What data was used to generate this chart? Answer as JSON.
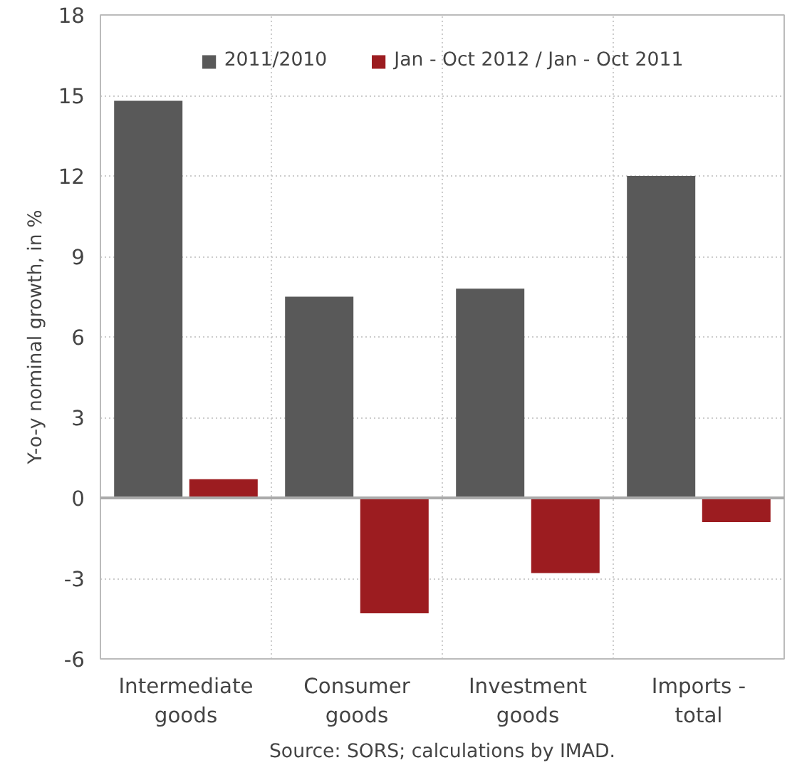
{
  "chart_data": {
    "type": "bar",
    "ylabel": "Y-o-y nominal growth, in %",
    "categories": [
      "Intermediate\ngoods",
      "Consumer\ngoods",
      "Investment\ngoods",
      "Imports -\ntotal"
    ],
    "series": [
      {
        "name": "2011/2010",
        "color": "#595959",
        "values": [
          14.8,
          7.5,
          7.8,
          12.0
        ]
      },
      {
        "name": "Jan - Oct 2012 / Jan - Oct 2011",
        "color": "#9c1c20",
        "values": [
          0.7,
          -4.3,
          -2.8,
          -0.9
        ]
      }
    ],
    "ylim": [
      -6,
      18
    ],
    "yticks": [
      -6,
      -3,
      0,
      3,
      6,
      9,
      12,
      15,
      18
    ],
    "grid": true,
    "legend": "top",
    "annotations": [
      "Source: SORS; calculations by IMAD."
    ]
  }
}
